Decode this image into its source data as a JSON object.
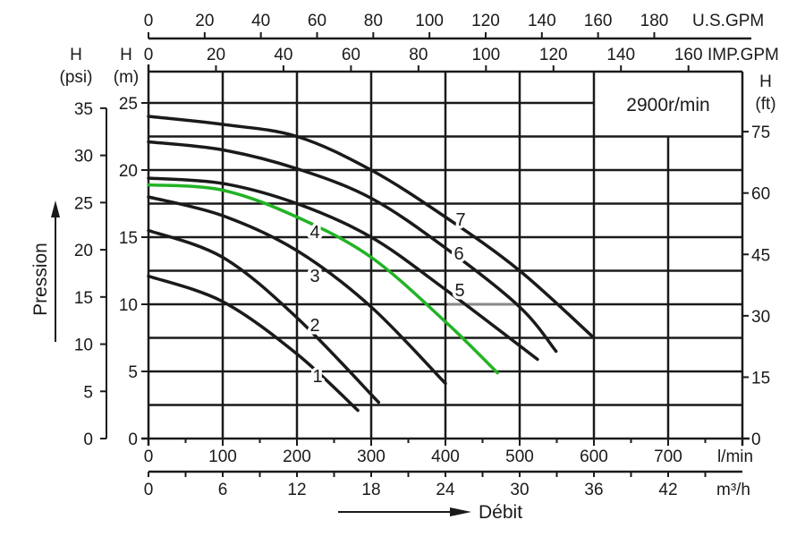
{
  "chart_data": {
    "type": "line",
    "title": "2900r/min",
    "xlabel": "Débit",
    "ylabel": "Pression",
    "x_unit": "l/min",
    "y_unit": "m",
    "xlim": [
      0,
      800
    ],
    "ylim": [
      0,
      27.5
    ],
    "grid": true,
    "x_ticks_lmin": [
      "0",
      "100",
      "200",
      "300",
      "400",
      "500",
      "600",
      "700"
    ],
    "x_ticks_m3h": [
      "0",
      "6",
      "12",
      "18",
      "24",
      "30",
      "36",
      "42"
    ],
    "x_ticks_usgpm": [
      "0",
      "20",
      "40",
      "60",
      "80",
      "100",
      "120",
      "140",
      "160",
      "180"
    ],
    "x_ticks_impgpm": [
      "0",
      "20",
      "40",
      "60",
      "80",
      "100",
      "120",
      "140",
      "160"
    ],
    "y_ticks_m": [
      "0",
      "5",
      "10",
      "15",
      "20",
      "25"
    ],
    "y_ticks_psi": [
      "0",
      "5",
      "10",
      "15",
      "20",
      "25",
      "30",
      "35"
    ],
    "y_ticks_ft": [
      "0",
      "15",
      "30",
      "45",
      "60",
      "75"
    ],
    "unit_labels": {
      "lmin": "l/min",
      "m3h": "m³/h",
      "usgpm": "U.S.GPM",
      "impgpm": "IMP.GPM",
      "h": "H",
      "psi": "(psi)",
      "m": "(m)",
      "ft": "(ft)"
    },
    "series": [
      {
        "name": "1",
        "color": "#1a1a1a",
        "x": [
          0,
          100,
          200,
          282
        ],
        "y": [
          12.1,
          10.2,
          6.3,
          2.1
        ]
      },
      {
        "name": "2",
        "color": "#1a1a1a",
        "x": [
          0,
          100,
          200,
          310
        ],
        "y": [
          15.5,
          13.5,
          9.0,
          2.7
        ]
      },
      {
        "name": "3",
        "color": "#1a1a1a",
        "x": [
          0,
          100,
          200,
          300,
          400
        ],
        "y": [
          18.0,
          16.6,
          14.0,
          9.8,
          4.1
        ]
      },
      {
        "name": "4",
        "color": "#22b326",
        "x": [
          0,
          100,
          200,
          300,
          400,
          470
        ],
        "y": [
          18.9,
          18.5,
          16.5,
          13.5,
          8.7,
          4.9
        ]
      },
      {
        "name": "5",
        "color": "#1a1a1a",
        "x": [
          0,
          100,
          200,
          300,
          400,
          524
        ],
        "y": [
          19.4,
          19.0,
          17.5,
          15.0,
          11.1,
          5.9
        ]
      },
      {
        "name": "6",
        "color": "#1a1a1a",
        "x": [
          0,
          100,
          200,
          300,
          400,
          500,
          549
        ],
        "y": [
          22.1,
          21.5,
          20.1,
          17.9,
          14.2,
          9.8,
          6.5
        ]
      },
      {
        "name": "7",
        "color": "#1a1a1a",
        "x": [
          0,
          100,
          200,
          300,
          400,
          500,
          600
        ],
        "y": [
          24.0,
          23.4,
          22.5,
          20.0,
          16.5,
          12.5,
          7.5
        ]
      }
    ]
  }
}
